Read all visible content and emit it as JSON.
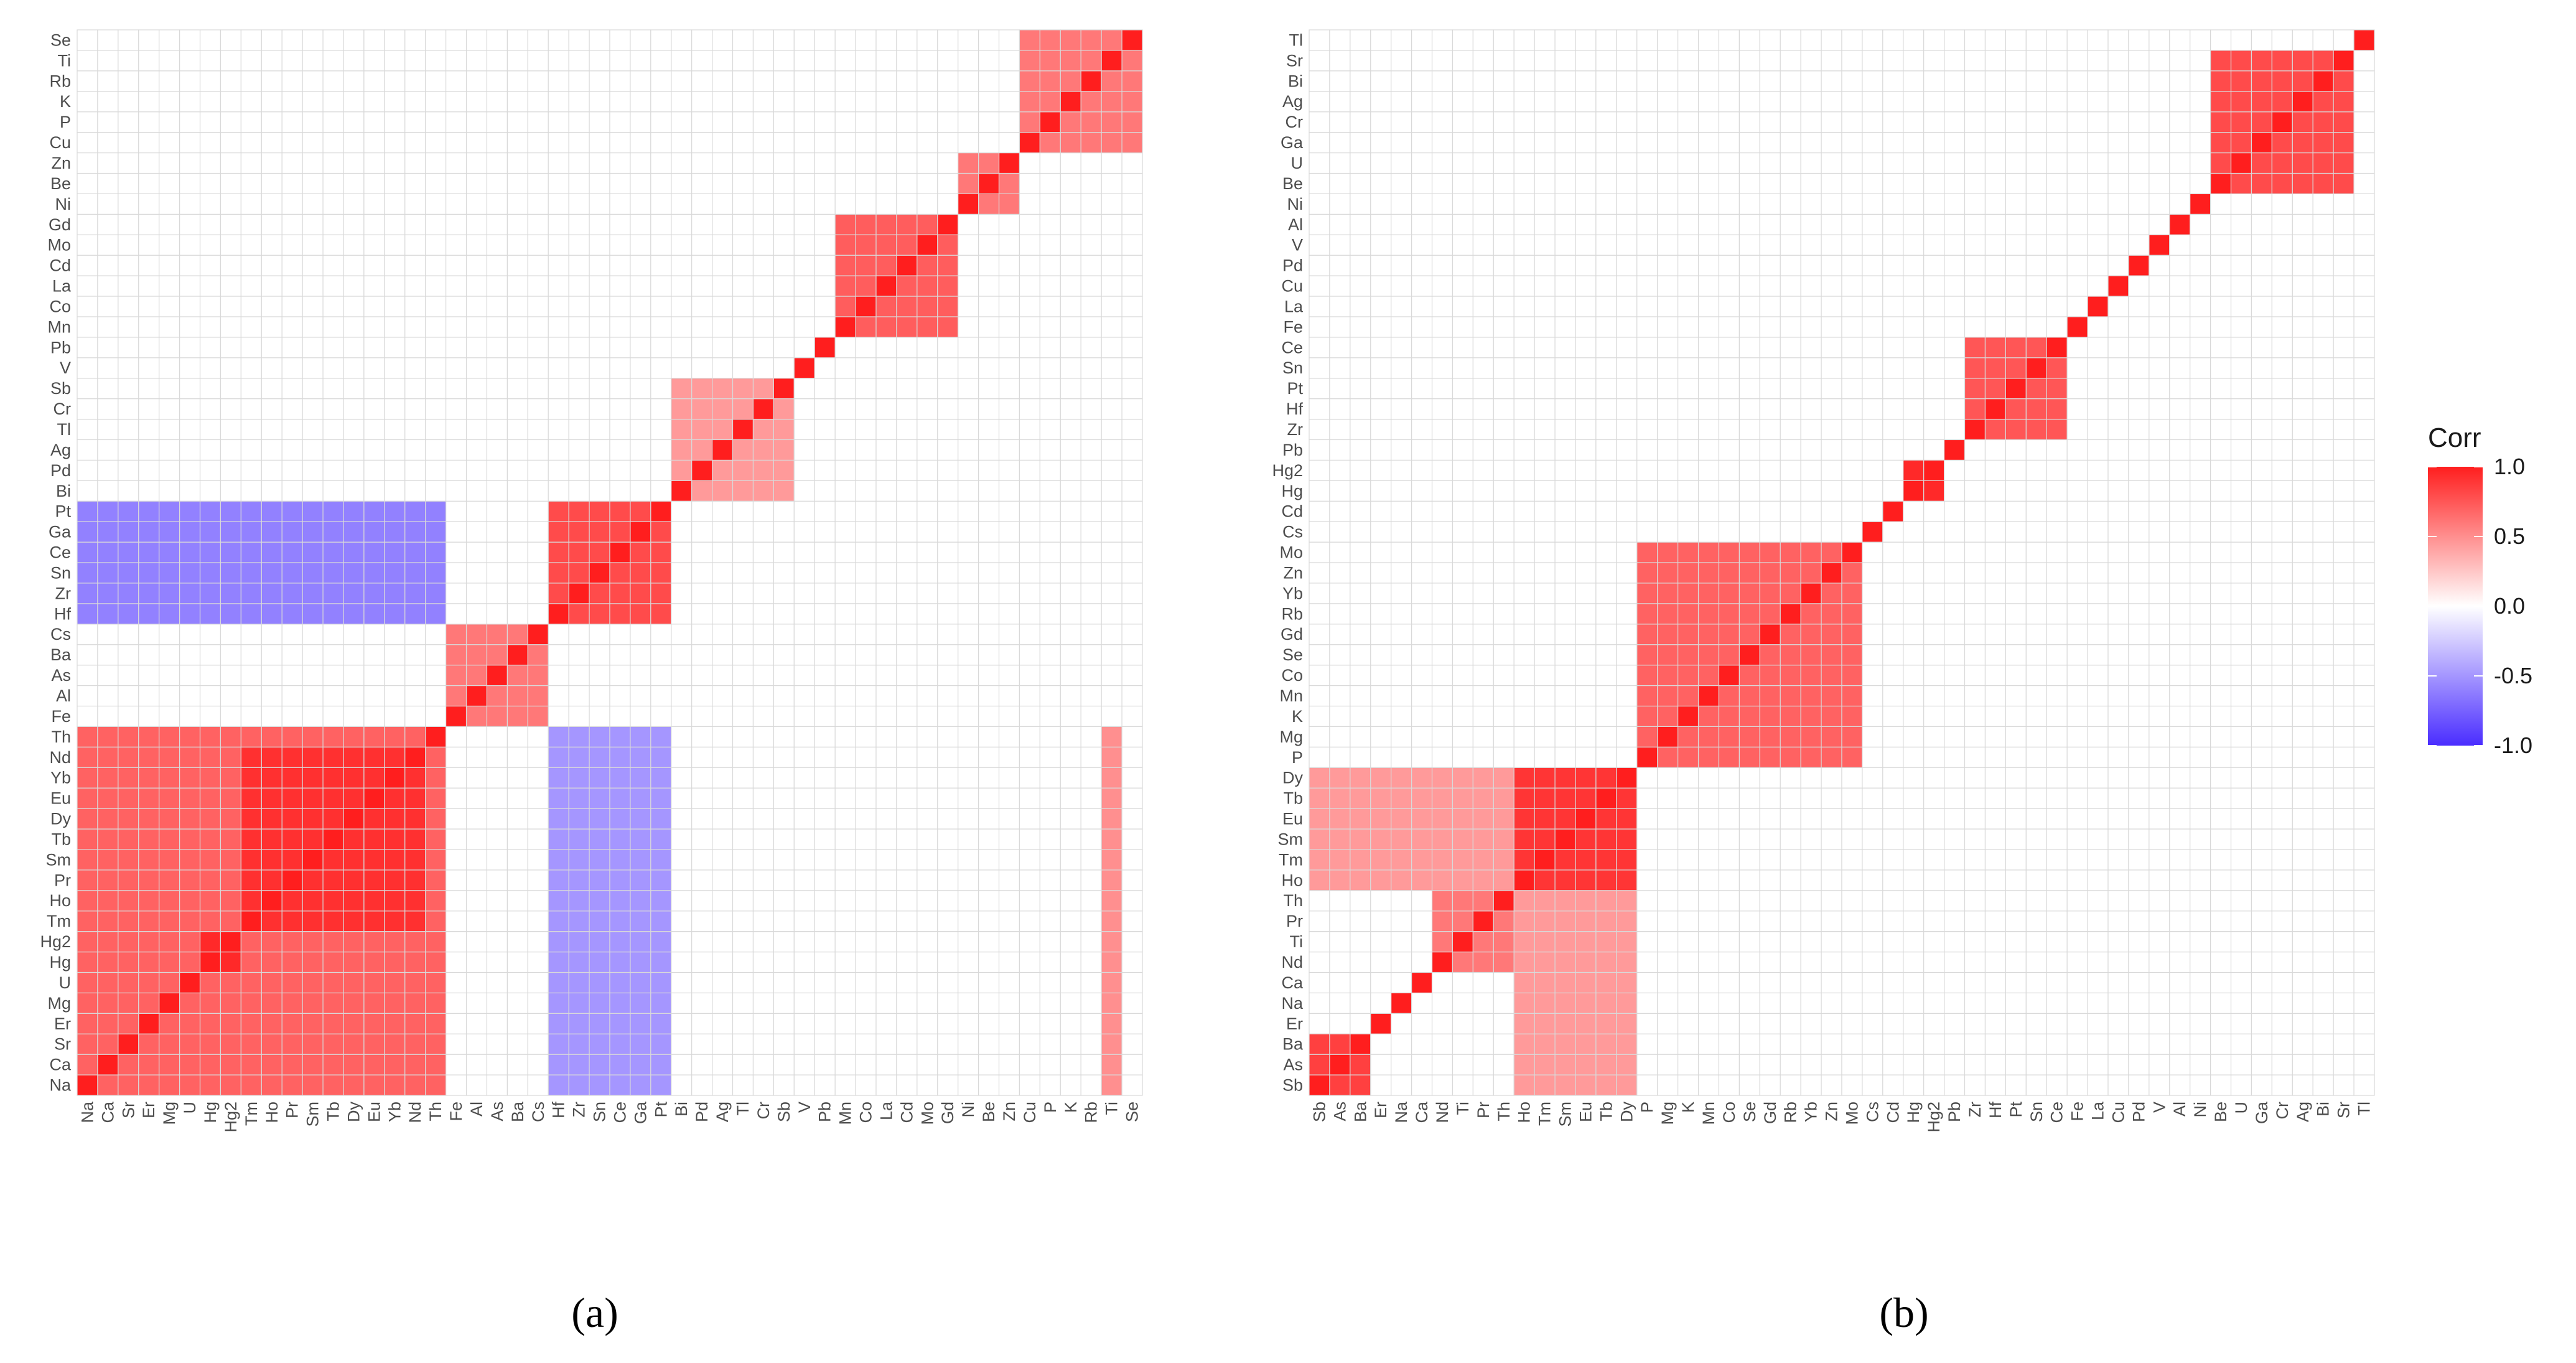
{
  "panels": [
    {
      "label": "(a)",
      "label_letter": "a"
    },
    {
      "label": "(b)",
      "label_letter": "b"
    }
  ],
  "colors": {
    "negative": "#4a2dff",
    "neutral": "#ffffff",
    "positive": "#ff1e1e",
    "grid": "#d9d9d9"
  },
  "chart_data": [
    {
      "type": "heatmap",
      "panel": "a",
      "variables": [
        "Na",
        "Ca",
        "Sr",
        "Er",
        "Mg",
        "U",
        "Hg",
        "Hg2",
        "Tm",
        "Ho",
        "Pr",
        "Sm",
        "Tb",
        "Dy",
        "Eu",
        "Yb",
        "Nd",
        "Th",
        "Fe",
        "Al",
        "As",
        "Ba",
        "Cs",
        "Hf",
        "Zr",
        "Sn",
        "Ce",
        "Ga",
        "Pt",
        "Bi",
        "Pd",
        "Ag",
        "Tl",
        "Cr",
        "Sb",
        "V",
        "Pb",
        "Mn",
        "Co",
        "La",
        "Cd",
        "Mo",
        "Gd",
        "Ni",
        "Be",
        "Zn",
        "Cu",
        "P",
        "K",
        "Rb",
        "Ti",
        "Se"
      ],
      "x_labels": [
        "Na",
        "Ca",
        "Sr",
        "Er",
        "Mg",
        "U",
        "Hg",
        "Hg2",
        "Tm",
        "Ho",
        "Pr",
        "Sm",
        "Tb",
        "Dy",
        "Eu",
        "Yb",
        "Nd",
        "Th",
        "Fe",
        "Al",
        "As",
        "Ba",
        "Cs",
        "Hf",
        "Zr",
        "Sn",
        "Ce",
        "Ga",
        "Pt",
        "Bi",
        "Pd",
        "Ag",
        "Tl",
        "Cr",
        "Sb",
        "V",
        "Pb",
        "Mn",
        "Co",
        "La",
        "Cd",
        "Mo",
        "Gd",
        "Ni",
        "Be",
        "Zn",
        "Cu",
        "P",
        "K",
        "Rb",
        "Ti",
        "Se"
      ],
      "y_labels_bottom_to_top": [
        "Na",
        "Ca",
        "Sr",
        "Er",
        "Mg",
        "U",
        "Hg",
        "Hg2",
        "Tm",
        "Ho",
        "Pr",
        "Sm",
        "Tb",
        "Dy",
        "Eu",
        "Yb",
        "Nd",
        "Th",
        "Fe",
        "Al",
        "As",
        "Ba",
        "Cs",
        "Hf",
        "Zr",
        "Sn",
        "Ce",
        "Ga",
        "Pt",
        "Bi",
        "Pd",
        "Ag",
        "Tl",
        "Cr",
        "Sb",
        "V",
        "Pb",
        "Mn",
        "Co",
        "La",
        "Cd",
        "Mo",
        "Gd",
        "Ni",
        "Be",
        "Zn",
        "Cu",
        "P",
        "K",
        "Rb",
        "Ti",
        "Se"
      ],
      "blank_value": 0,
      "blocks": [
        {
          "rows": [
            "Na",
            "Ca",
            "Sr",
            "Er",
            "Mg",
            "U",
            "Hg",
            "Hg2",
            "Tm",
            "Ho",
            "Pr",
            "Sm",
            "Tb",
            "Dy",
            "Eu",
            "Yb",
            "Nd",
            "Th"
          ],
          "cols": [
            "Na",
            "Ca",
            "Sr",
            "Er",
            "Mg",
            "U",
            "Hg",
            "Hg2",
            "Tm",
            "Ho",
            "Pr",
            "Sm",
            "Tb",
            "Dy",
            "Eu",
            "Yb",
            "Nd",
            "Th"
          ],
          "value": 0.7
        },
        {
          "rows": [
            "Tm",
            "Ho",
            "Pr",
            "Sm",
            "Tb",
            "Dy",
            "Eu",
            "Yb",
            "Nd"
          ],
          "cols": [
            "Tm",
            "Ho",
            "Pr",
            "Sm",
            "Tb",
            "Dy",
            "Eu",
            "Yb",
            "Nd"
          ],
          "value": 0.92
        },
        {
          "rows": [
            "Hg",
            "Hg2"
          ],
          "cols": [
            "Hg",
            "Hg2"
          ],
          "value": 0.95
        },
        {
          "rows": [
            "Fe",
            "Al",
            "As",
            "Ba",
            "Cs"
          ],
          "cols": [
            "Fe",
            "Al",
            "As",
            "Ba",
            "Cs"
          ],
          "value": 0.6
        },
        {
          "rows": [
            "Hf",
            "Zr",
            "Sn",
            "Ce",
            "Ga",
            "Pt"
          ],
          "cols": [
            "Hf",
            "Zr",
            "Sn",
            "Ce",
            "Ga",
            "Pt"
          ],
          "value": 0.8
        },
        {
          "rows": [
            "Bi",
            "Pd",
            "Ag",
            "Tl",
            "Cr",
            "Sb"
          ],
          "cols": [
            "Bi",
            "Pd",
            "Ag",
            "Tl",
            "Cr",
            "Sb"
          ],
          "value": 0.45
        },
        {
          "rows": [
            "Mn",
            "Co",
            "La",
            "Cd",
            "Mo",
            "Gd"
          ],
          "cols": [
            "Mn",
            "Co",
            "La",
            "Cd",
            "Mo",
            "Gd"
          ],
          "value": 0.72
        },
        {
          "rows": [
            "Ni",
            "Be",
            "Zn"
          ],
          "cols": [
            "Ni",
            "Be",
            "Zn"
          ],
          "value": 0.6
        },
        {
          "rows": [
            "Cu",
            "P",
            "K",
            "Rb",
            "Ti",
            "Se"
          ],
          "cols": [
            "Cu",
            "P",
            "K",
            "Rb",
            "Ti",
            "Se"
          ],
          "value": 0.6
        },
        {
          "rows": [
            "Hf",
            "Zr",
            "Sn",
            "Ce",
            "Ga",
            "Pt"
          ],
          "cols": [
            "Na",
            "Ca",
            "Sr",
            "Er",
            "Mg",
            "U",
            "Hg",
            "Hg2",
            "Tm",
            "Ho",
            "Pr",
            "Sm",
            "Tb",
            "Dy",
            "Eu",
            "Yb",
            "Nd",
            "Th"
          ],
          "value": -0.6
        },
        {
          "rows": [
            "Na",
            "Ca",
            "Sr",
            "Er",
            "Mg",
            "U",
            "Hg",
            "Hg2",
            "Tm",
            "Ho",
            "Pr",
            "Sm",
            "Tb",
            "Dy",
            "Eu",
            "Yb",
            "Nd",
            "Th"
          ],
          "cols": [
            "Hf",
            "Zr",
            "Sn",
            "Ce",
            "Ga",
            "Pt"
          ],
          "value": -0.5
        },
        {
          "rows": [
            "Na",
            "Ca",
            "Sr",
            "Er",
            "Mg",
            "U",
            "Hg",
            "Hg2",
            "Tm",
            "Ho",
            "Pr",
            "Sm",
            "Tb",
            "Dy",
            "Eu",
            "Yb",
            "Nd",
            "Th"
          ],
          "cols": [
            "Ti"
          ],
          "value": 0.5
        }
      ],
      "colorbar": null
    },
    {
      "type": "heatmap",
      "panel": "b",
      "variables": [
        "Sb",
        "As",
        "Ba",
        "Er",
        "Na",
        "Ca",
        "Nd",
        "Ti",
        "Pr",
        "Th",
        "Ho",
        "Tm",
        "Sm",
        "Eu",
        "Tb",
        "Dy",
        "P",
        "Mg",
        "K",
        "Mn",
        "Co",
        "Se",
        "Gd",
        "Rb",
        "Yb",
        "Zn",
        "Mo",
        "Cs",
        "Cd",
        "Hg",
        "Hg2",
        "Pb",
        "Zr",
        "Hf",
        "Pt",
        "Sn",
        "Ce",
        "Fe",
        "La",
        "Cu",
        "Pd",
        "V",
        "Al",
        "Ni",
        "Be",
        "U",
        "Ga",
        "Cr",
        "Ag",
        "Bi",
        "Sr",
        "Tl"
      ],
      "x_labels": [
        "Sb",
        "As",
        "Ba",
        "Er",
        "Na",
        "Ca",
        "Nd",
        "Ti",
        "Pr",
        "Th",
        "Ho",
        "Tm",
        "Sm",
        "Eu",
        "Tb",
        "Dy",
        "P",
        "Mg",
        "K",
        "Mn",
        "Co",
        "Se",
        "Gd",
        "Rb",
        "Yb",
        "Zn",
        "Mo",
        "Cs",
        "Cd",
        "Hg",
        "Hg2",
        "Pb",
        "Zr",
        "Hf",
        "Pt",
        "Sn",
        "Ce",
        "Fe",
        "La",
        "Cu",
        "Pd",
        "V",
        "Al",
        "Ni",
        "Be",
        "U",
        "Ga",
        "Cr",
        "Ag",
        "Bi",
        "Sr",
        "Tl"
      ],
      "y_labels_bottom_to_top": [
        "Sb",
        "As",
        "Ba",
        "Er",
        "Na",
        "Ca",
        "Nd",
        "Ti",
        "Pr",
        "Th",
        "Ho",
        "Tm",
        "Sm",
        "Eu",
        "Tb",
        "Dy",
        "P",
        "Mg",
        "K",
        "Mn",
        "Co",
        "Se",
        "Gd",
        "Rb",
        "Yb",
        "Zn",
        "Mo",
        "Cs",
        "Cd",
        "Hg",
        "Hg2",
        "Pb",
        "Zr",
        "Hf",
        "Pt",
        "Sn",
        "Ce",
        "Fe",
        "La",
        "Cu",
        "Pd",
        "V",
        "Al",
        "Ni",
        "Be",
        "U",
        "Ga",
        "Cr",
        "Ag",
        "Bi",
        "Sr",
        "Tl"
      ],
      "blank_value": 0,
      "blocks": [
        {
          "rows": [
            "Sb",
            "As",
            "Ba"
          ],
          "cols": [
            "Sb",
            "As",
            "Ba"
          ],
          "value": 0.85
        },
        {
          "rows": [
            "Nd",
            "Ti",
            "Pr",
            "Th"
          ],
          "cols": [
            "Nd",
            "Ti",
            "Pr",
            "Th"
          ],
          "value": 0.6
        },
        {
          "rows": [
            "Ho",
            "Tm",
            "Sm",
            "Eu",
            "Tb",
            "Dy"
          ],
          "cols": [
            "Ho",
            "Tm",
            "Sm",
            "Eu",
            "Tb",
            "Dy"
          ],
          "value": 0.9
        },
        {
          "rows": [
            "P",
            "Mg",
            "K",
            "Mn",
            "Co",
            "Se",
            "Gd",
            "Rb",
            "Yb",
            "Zn",
            "Mo"
          ],
          "cols": [
            "P",
            "Mg",
            "K",
            "Mn",
            "Co",
            "Se",
            "Gd",
            "Rb",
            "Yb",
            "Zn",
            "Mo"
          ],
          "value": 0.7
        },
        {
          "rows": [
            "Hg",
            "Hg2"
          ],
          "cols": [
            "Hg",
            "Hg2"
          ],
          "value": 0.95
        },
        {
          "rows": [
            "Zr",
            "Hf",
            "Pt",
            "Sn",
            "Ce"
          ],
          "cols": [
            "Zr",
            "Hf",
            "Pt",
            "Sn",
            "Ce"
          ],
          "value": 0.75
        },
        {
          "rows": [
            "Be",
            "U",
            "Ga",
            "Cr",
            "Ag",
            "Bi",
            "Sr"
          ],
          "cols": [
            "Be",
            "U",
            "Ga",
            "Cr",
            "Ag",
            "Bi",
            "Sr"
          ],
          "value": 0.8
        },
        {
          "rows": [
            "Ho",
            "Tm",
            "Sm",
            "Eu",
            "Tb",
            "Dy"
          ],
          "cols": [
            "Sb",
            "As",
            "Ba",
            "Er",
            "Na",
            "Ca",
            "Nd",
            "Ti",
            "Pr",
            "Th"
          ],
          "value": 0.45
        },
        {
          "rows": [
            "Sb",
            "As",
            "Ba",
            "Er",
            "Na",
            "Ca",
            "Nd",
            "Ti",
            "Pr",
            "Th"
          ],
          "cols": [
            "Ho",
            "Tm",
            "Sm",
            "Eu",
            "Tb",
            "Dy"
          ],
          "value": 0.45
        }
      ],
      "colorbar": {
        "title": "Corr",
        "ticks": [
          1.0,
          0.5,
          0.0,
          -0.5,
          -1.0
        ],
        "tick_labels": [
          "1.0",
          "0.5",
          "0.0",
          "-0.5",
          "-1.0"
        ],
        "range": [
          -1.0,
          1.0
        ]
      }
    }
  ]
}
